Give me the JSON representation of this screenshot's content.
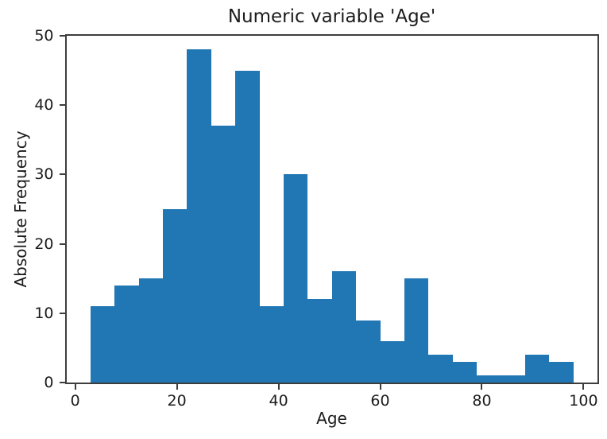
{
  "chart_data": {
    "type": "bar",
    "subtype": "histogram",
    "title": "Numeric variable 'Age'",
    "xlabel": "Age",
    "ylabel": "Absolute Frequency",
    "bin_edges": [
      3,
      7.75,
      12.5,
      17.25,
      22,
      26.75,
      31.5,
      36.25,
      41,
      45.75,
      50.5,
      55.25,
      60,
      64.75,
      69.5,
      74.25,
      79,
      83.75,
      88.5,
      93.25,
      98
    ],
    "counts": [
      11,
      14,
      15,
      25,
      48,
      37,
      45,
      11,
      30,
      12,
      16,
      9,
      6,
      15,
      4,
      3,
      1,
      1,
      4,
      3
    ],
    "xlim": [
      -1.75,
      102.75
    ],
    "ylim": [
      0,
      50
    ],
    "xticks": [
      0,
      20,
      40,
      60,
      80,
      100
    ],
    "yticks": [
      0,
      10,
      20,
      30,
      40,
      50
    ],
    "grid": false,
    "legend_position": "none",
    "bar_color": "#2077b4",
    "text_color": "#1c1c1c",
    "spine_color": "#3d3d3d"
  }
}
